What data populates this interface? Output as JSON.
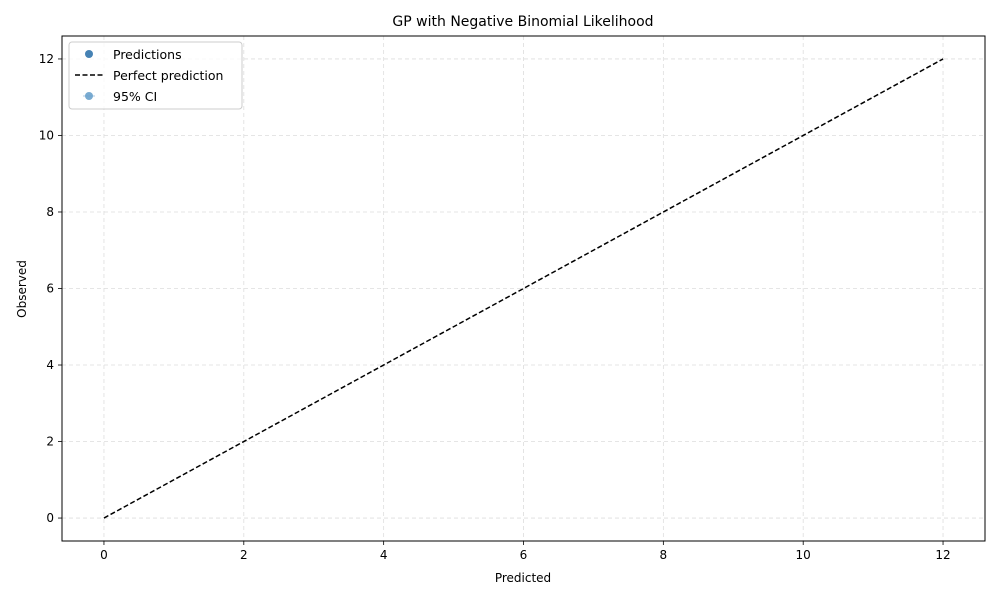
{
  "chart_data": {
    "type": "scatter",
    "title": "GP with Negative Binomial Likelihood",
    "xlabel": "Predicted",
    "ylabel": "Observed",
    "xlim": [
      -0.6,
      12.6
    ],
    "ylim": [
      -0.6,
      12.6
    ],
    "xticks": [
      0,
      2,
      4,
      6,
      8,
      10,
      12
    ],
    "yticks": [
      0,
      2,
      4,
      6,
      8,
      10,
      12
    ],
    "grid": true,
    "legend_position": "top-left",
    "series": [
      {
        "name": "Predictions",
        "kind": "points",
        "color": "#4682b4",
        "points": []
      },
      {
        "name": "Perfect prediction",
        "kind": "dashed-line",
        "color": "#000000",
        "x": [
          0,
          12
        ],
        "y": [
          0,
          12
        ]
      },
      {
        "name": "95% CI",
        "kind": "errorbars",
        "color": "#6aa2cc",
        "points": []
      }
    ]
  }
}
